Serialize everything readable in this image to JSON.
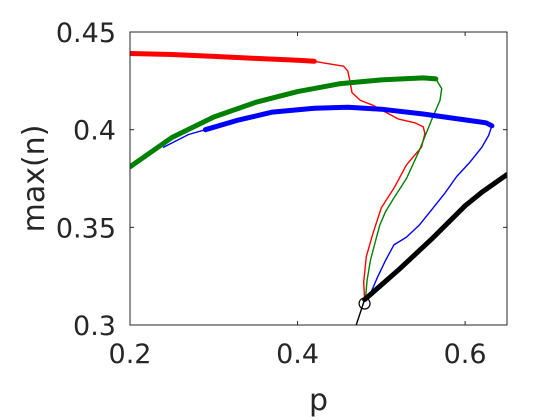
{
  "chart_data": {
    "type": "line",
    "title": "",
    "xlabel": "p",
    "ylabel": "max(n)",
    "xlim": [
      0.2,
      0.65
    ],
    "ylim": [
      0.3,
      0.45
    ],
    "xticks": [
      0.2,
      0.4,
      0.6
    ],
    "xtick_labels": [
      "0.2",
      "0.4",
      "0.6"
    ],
    "yticks": [
      0.3,
      0.35,
      0.4,
      0.45
    ],
    "ytick_labels": [
      "0.3",
      "0.35",
      "0.4",
      "0.45"
    ],
    "grid": false,
    "legend": "none",
    "series": [
      {
        "color": "#ff0000",
        "segments": [
          {
            "width": "thick",
            "points": [
              [
                0.2,
                0.439
              ],
              [
                0.25,
                0.4385
              ],
              [
                0.3,
                0.4375
              ],
              [
                0.35,
                0.4365
              ],
              [
                0.4,
                0.4355
              ],
              [
                0.42,
                0.435
              ]
            ]
          },
          {
            "width": "thin",
            "points": [
              [
                0.42,
                0.435
              ],
              [
                0.44,
                0.4335
              ],
              [
                0.455,
                0.4325
              ],
              [
                0.46,
                0.43
              ],
              [
                0.462,
                0.426
              ],
              [
                0.465,
                0.419
              ],
              [
                0.475,
                0.415
              ],
              [
                0.49,
                0.4125
              ],
              [
                0.505,
                0.409
              ],
              [
                0.52,
                0.4055
              ],
              [
                0.54,
                0.4035
              ],
              [
                0.55,
                0.4015
              ],
              [
                0.552,
                0.398
              ],
              [
                0.548,
                0.391
              ],
              [
                0.53,
                0.382
              ],
              [
                0.515,
                0.37
              ],
              [
                0.5,
                0.36
              ],
              [
                0.49,
                0.347
              ],
              [
                0.482,
                0.335
              ],
              [
                0.479,
                0.322
              ],
              [
                0.48,
                0.313
              ]
            ]
          }
        ]
      },
      {
        "color": "#008000",
        "segments": [
          {
            "width": "thick",
            "points": [
              [
                0.2,
                0.381
              ],
              [
                0.25,
                0.396
              ],
              [
                0.3,
                0.4065
              ],
              [
                0.35,
                0.414
              ],
              [
                0.4,
                0.4195
              ],
              [
                0.45,
                0.4235
              ],
              [
                0.5,
                0.4255
              ],
              [
                0.55,
                0.4265
              ],
              [
                0.565,
                0.426
              ]
            ]
          },
          {
            "width": "thin",
            "points": [
              [
                0.565,
                0.426
              ],
              [
                0.572,
                0.421
              ],
              [
                0.57,
                0.415
              ],
              [
                0.56,
                0.405
              ],
              [
                0.545,
                0.389
              ],
              [
                0.53,
                0.375
              ],
              [
                0.515,
                0.365
              ],
              [
                0.505,
                0.358
              ],
              [
                0.498,
                0.351
              ],
              [
                0.493,
                0.343
              ],
              [
                0.487,
                0.333
              ],
              [
                0.483,
                0.323
              ],
              [
                0.481,
                0.313
              ]
            ]
          }
        ]
      },
      {
        "color": "#0000ff",
        "segments": [
          {
            "width": "thin",
            "points": [
              [
                0.24,
                0.391
              ],
              [
                0.27,
                0.3975
              ],
              [
                0.29,
                0.4
              ]
            ]
          },
          {
            "width": "thick",
            "points": [
              [
                0.29,
                0.4
              ],
              [
                0.33,
                0.405
              ],
              [
                0.37,
                0.409
              ],
              [
                0.42,
                0.411
              ],
              [
                0.46,
                0.4115
              ],
              [
                0.5,
                0.4105
              ],
              [
                0.55,
                0.408
              ],
              [
                0.6,
                0.405
              ],
              [
                0.625,
                0.4035
              ],
              [
                0.632,
                0.402
              ]
            ]
          },
          {
            "width": "thin",
            "points": [
              [
                0.632,
                0.402
              ],
              [
                0.628,
                0.397
              ],
              [
                0.62,
                0.391
              ],
              [
                0.605,
                0.383
              ],
              [
                0.59,
                0.376
              ],
              [
                0.575,
                0.367
              ],
              [
                0.56,
                0.359
              ],
              [
                0.545,
                0.351
              ],
              [
                0.53,
                0.345
              ],
              [
                0.515,
                0.341
              ],
              [
                0.505,
                0.333
              ],
              [
                0.495,
                0.324
              ],
              [
                0.487,
                0.316
              ],
              [
                0.481,
                0.313
              ]
            ]
          }
        ]
      },
      {
        "color": "#000000",
        "segments": [
          {
            "width": "thin",
            "points": [
              [
                0.47,
                0.3
              ],
              [
                0.48,
                0.313
              ]
            ]
          },
          {
            "width": "thick",
            "points": [
              [
                0.48,
                0.313
              ],
              [
                0.52,
                0.328
              ],
              [
                0.56,
                0.344
              ],
              [
                0.6,
                0.361
              ],
              [
                0.62,
                0.368
              ],
              [
                0.65,
                0.377
              ]
            ]
          }
        ]
      }
    ],
    "markers": [
      {
        "type": "open-circle",
        "color": "#000000",
        "x": 0.48,
        "y": 0.311
      }
    ]
  }
}
